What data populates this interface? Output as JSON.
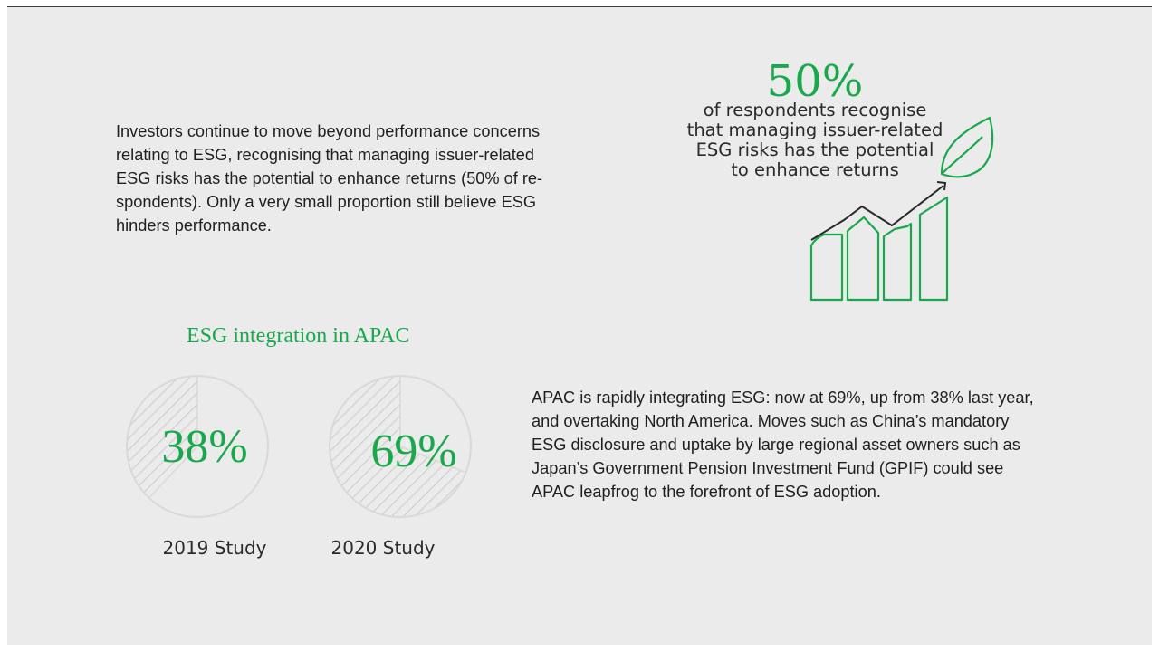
{
  "intro_paragraph": [
    "Investors continue to move beyond performance concerns",
    "relating to ESG, recognising that managing issuer-related",
    "ESG risks has the potential to enhance returns (50% of re-",
    "spondents). Only a very small proportion still believe ESG",
    "hinders performance."
  ],
  "highlight": {
    "value": "50%",
    "caption": [
      "of respondents recognise",
      "that managing issuer-related",
      "ESG risks has the potential",
      "to enhance returns"
    ],
    "icon": "growth-chart-leaf-icon"
  },
  "apac_paragraph": [
    "APAC is rapidly integrating ESG: now at 69%, up from 38% last year,",
    "and overtaking North America. Moves such as China’s mandatory",
    "ESG disclosure and uptake by large regional asset owners such as",
    "Japan’s Government Pension Investment Fund (GPIF) could see",
    "APAC leapfrog to the forefront of ESG adoption."
  ],
  "colors": {
    "accent": "#1aa84d",
    "background": "#ebebeb",
    "text": "#1f1f1f",
    "hatch": "#cfcfcf",
    "ring": "#d9d9d9"
  },
  "chart_data": {
    "type": "pie",
    "title": "ESG integration in APAC",
    "categories": [
      "2019 Study",
      "2020 Study"
    ],
    "values": [
      38,
      69
    ],
    "value_labels": [
      "38%",
      "69%"
    ],
    "unit": "%",
    "max": 100
  }
}
